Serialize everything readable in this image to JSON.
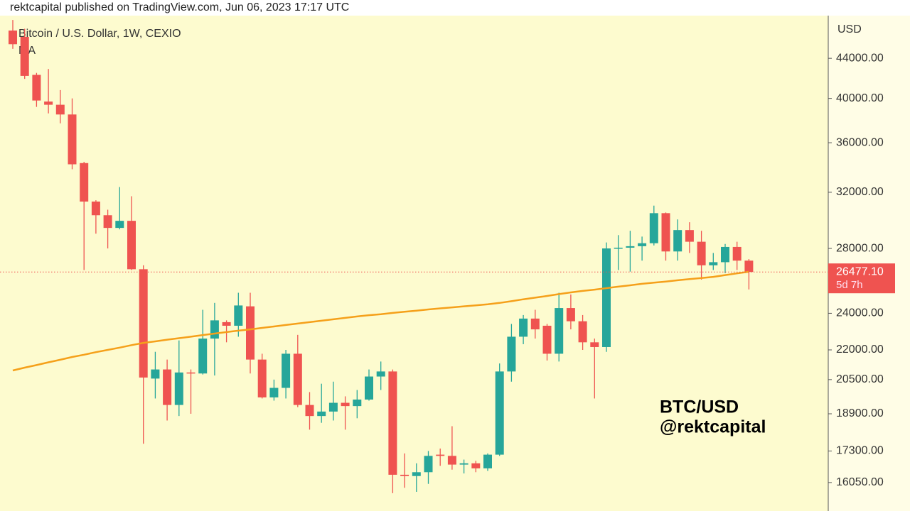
{
  "header": "rektcapital published on TradingView.com, Jun 06, 2023 17:17 UTC",
  "chart_data": {
    "type": "candlestick",
    "title": "Bitcoin / U.S. Dollar, 1W, CEXIO",
    "axis_label": "USD",
    "log_scale": true,
    "up_color": "#26a69a",
    "down_color": "#ef5350",
    "ylim": [
      15000,
      48700
    ],
    "yticks": [
      {
        "value": 44000,
        "label": "44000.00"
      },
      {
        "value": 40000,
        "label": "40000.00"
      },
      {
        "value": 36000,
        "label": "36000.00"
      },
      {
        "value": 32000,
        "label": "32000.00"
      },
      {
        "value": 28000,
        "label": "28000.00"
      },
      {
        "value": 24000,
        "label": "24000.00"
      },
      {
        "value": 22000,
        "label": "22000.00"
      },
      {
        "value": 20500,
        "label": "20500.00"
      },
      {
        "value": 18900,
        "label": "18900.00"
      },
      {
        "value": 17300,
        "label": "17300.00"
      },
      {
        "value": 16050,
        "label": "16050.00"
      }
    ],
    "open": [
      47000,
      46300,
      42300,
      39700,
      39400,
      38500,
      34300,
      31300,
      30300,
      29400,
      29900,
      26650,
      20550,
      21000,
      19300,
      20850,
      20800,
      22600,
      23500,
      23300,
      24400,
      21500,
      19650,
      20100,
      21800,
      19300,
      18800,
      19000,
      19400,
      19250,
      19550,
      20650,
      20900,
      16350,
      16300,
      16450,
      17150,
      17100,
      16750,
      16800,
      16600,
      17150,
      20900,
      22700,
      23700,
      23300,
      21800,
      24300,
      23550,
      22400,
      22150,
      28000,
      28050,
      28150,
      28350,
      30450,
      27800,
      29250,
      28450,
      26900,
      27100,
      28100,
      27200
    ],
    "high": [
      48200,
      47200,
      42500,
      42900,
      40800,
      40000,
      34400,
      31400,
      30700,
      32400,
      31700,
      26900,
      21900,
      21500,
      22500,
      21000,
      24200,
      24600,
      23600,
      25200,
      25200,
      21800,
      20500,
      22000,
      22800,
      19900,
      20300,
      20400,
      19700,
      20000,
      21000,
      21400,
      21000,
      17200,
      16800,
      17300,
      17400,
      18350,
      16950,
      16900,
      17200,
      21300,
      23400,
      23900,
      24200,
      23400,
      25200,
      25100,
      23900,
      22600,
      28400,
      28900,
      29200,
      28800,
      31000,
      30500,
      30000,
      29800,
      29200,
      27700,
      28300,
      28450,
      27300
    ],
    "low": [
      45000,
      41900,
      39200,
      38600,
      37700,
      33800,
      26600,
      29000,
      28000,
      29300,
      26600,
      17600,
      19600,
      18600,
      18800,
      18900,
      20750,
      20700,
      22400,
      22700,
      20800,
      19600,
      19500,
      19600,
      19200,
      18200,
      18500,
      18600,
      18200,
      18700,
      19500,
      20000,
      15650,
      15850,
      15700,
      16000,
      16700,
      16550,
      16400,
      16450,
      16500,
      17100,
      20400,
      22300,
      22600,
      21450,
      21400,
      23100,
      22000,
      19600,
      21900,
      26600,
      26500,
      27200,
      28200,
      27200,
      27200,
      27700,
      26000,
      26600,
      26400,
      26600,
      25400
    ],
    "close": [
      45500,
      42200,
      39800,
      39400,
      38500,
      34200,
      31300,
      30300,
      29400,
      29900,
      26650,
      20600,
      21000,
      19300,
      20850,
      20800,
      22600,
      23600,
      23300,
      24450,
      21500,
      19650,
      20100,
      21800,
      19300,
      18800,
      19000,
      19400,
      19250,
      19550,
      20650,
      20900,
      16350,
      16300,
      16450,
      17100,
      17100,
      16750,
      16800,
      16600,
      17150,
      20900,
      22700,
      23700,
      23100,
      21800,
      24300,
      23550,
      22400,
      22150,
      28000,
      28050,
      28150,
      28350,
      30450,
      27800,
      29250,
      28450,
      26900,
      27100,
      28100,
      27200,
      26477.1
    ],
    "ma": {
      "name": "MA",
      "color": "#f5a01a",
      "values": [
        20950,
        21090,
        21220,
        21360,
        21490,
        21630,
        21750,
        21880,
        22000,
        22120,
        22250,
        22370,
        22450,
        22540,
        22620,
        22700,
        22790,
        22870,
        22950,
        23030,
        23100,
        23180,
        23260,
        23340,
        23420,
        23500,
        23580,
        23660,
        23740,
        23820,
        23890,
        23950,
        24020,
        24090,
        24150,
        24220,
        24280,
        24340,
        24400,
        24460,
        24520,
        24600,
        24700,
        24810,
        24910,
        25010,
        25120,
        25220,
        25310,
        25390,
        25480,
        25570,
        25650,
        25740,
        25810,
        25880,
        25960,
        26030,
        26100,
        26170,
        26280,
        26390,
        26490
      ]
    },
    "last_price": 26477.1,
    "last_price_label": "26477.10",
    "countdown": "5d 7h",
    "watermark": [
      "BTC/USD",
      "@rektcapital"
    ]
  }
}
